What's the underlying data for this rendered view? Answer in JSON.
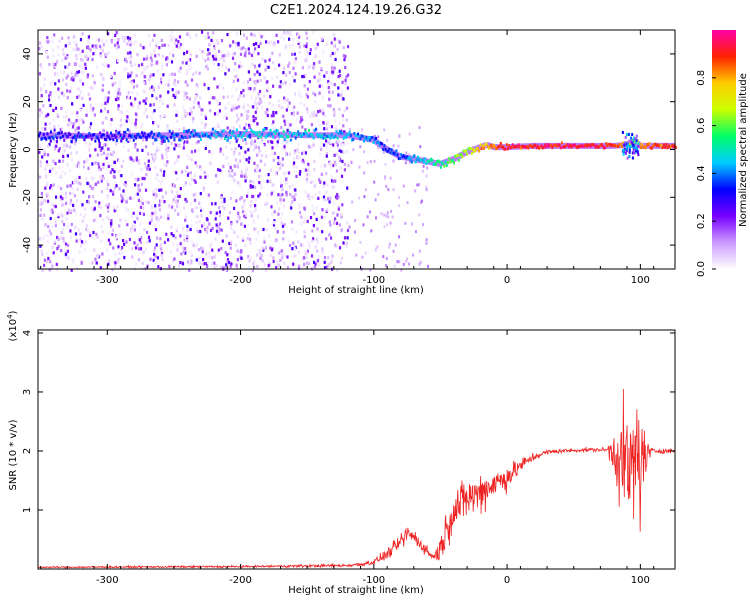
{
  "figure": {
    "title": "C2E1.2024.124.19.26.G32"
  },
  "colorbar": {
    "label": "Normalized spectral amplitude",
    "range": [
      0.0,
      1.0
    ],
    "ticks": [
      "0.0",
      "0.2",
      "0.4",
      "0.6",
      "0.8"
    ],
    "colors": [
      "#ffffff",
      "#cc99ff",
      "#7700ff",
      "#0000ff",
      "#00ccff",
      "#00ff66",
      "#ccff00",
      "#ffcc00",
      "#ff2200",
      "#ff00aa"
    ]
  },
  "chart_data": [
    {
      "type": "heatmap",
      "name": "spectrogram",
      "title": "",
      "xlabel": "Height of straight line (km)",
      "ylabel": "Frequency (Hz)",
      "xlim": [
        -352,
        126
      ],
      "ylim": [
        -50,
        50
      ],
      "xticks": [
        "-300",
        "-200",
        "-100",
        "0",
        "100"
      ],
      "yticks": [
        "-40",
        "-20",
        "0",
        "20",
        "40"
      ],
      "ridge": {
        "x": [
          -352,
          -300,
          -250,
          -200,
          -150,
          -120,
          -100,
          -90,
          -80,
          -70,
          -60,
          -50,
          -40,
          -30,
          -20,
          -15,
          -10,
          0,
          20,
          50,
          80,
          90,
          95,
          100,
          126
        ],
        "freq_hz": [
          6,
          5.5,
          6,
          6.5,
          6,
          6,
          4,
          0,
          -3,
          -4,
          -5,
          -6,
          -4,
          -1,
          1,
          2,
          1,
          1,
          1.5,
          1.5,
          1.5,
          2,
          4,
          1.5,
          1.5
        ],
        "amplitude": [
          0.3,
          0.32,
          0.35,
          0.45,
          0.45,
          0.42,
          0.38,
          0.35,
          0.38,
          0.45,
          0.5,
          0.55,
          0.6,
          0.65,
          0.75,
          0.8,
          0.85,
          0.9,
          0.92,
          0.93,
          0.9,
          0.8,
          0.6,
          0.85,
          0.9
        ]
      },
      "noise_region_x": [
        -352,
        -120
      ]
    },
    {
      "type": "line",
      "name": "snr",
      "title": "",
      "xlabel": "Height of straight line (km)",
      "ylabel": "SNR (10 * v/v)",
      "y_multiplier_label": "(x10",
      "y_multiplier_exp": "4",
      "y_multiplier_close": ")",
      "xlim": [
        -352,
        126
      ],
      "ylim": [
        0,
        4.05
      ],
      "xticks": [
        "-300",
        "-200",
        "-100",
        "0",
        "100"
      ],
      "yticks": [
        "1",
        "2",
        "3",
        "4"
      ],
      "color": "#ee2222",
      "envelope": {
        "x": [
          -352,
          -200,
          -120,
          -110,
          -100,
          -90,
          -80,
          -75,
          -70,
          -60,
          -55,
          -50,
          -45,
          -40,
          -30,
          -20,
          -10,
          0,
          10,
          20,
          30,
          40,
          60,
          75,
          80,
          85,
          90,
          95,
          98,
          100,
          105,
          110,
          126
        ],
        "mean": [
          0.03,
          0.04,
          0.06,
          0.08,
          0.12,
          0.25,
          0.45,
          0.6,
          0.55,
          0.3,
          0.2,
          0.35,
          0.7,
          1.0,
          1.2,
          1.3,
          1.45,
          1.55,
          1.75,
          1.9,
          1.98,
          2.0,
          2.02,
          2.02,
          2.0,
          1.9,
          1.7,
          1.6,
          2.0,
          1.8,
          1.95,
          2.0,
          2.0
        ],
        "noise": [
          0.015,
          0.02,
          0.03,
          0.04,
          0.06,
          0.1,
          0.15,
          0.2,
          0.15,
          0.1,
          0.1,
          0.25,
          0.35,
          0.4,
          0.4,
          0.4,
          0.3,
          0.25,
          0.15,
          0.08,
          0.05,
          0.04,
          0.04,
          0.04,
          0.5,
          0.9,
          1.1,
          1.3,
          2.0,
          1.2,
          0.25,
          0.05,
          0.04
        ]
      }
    }
  ]
}
